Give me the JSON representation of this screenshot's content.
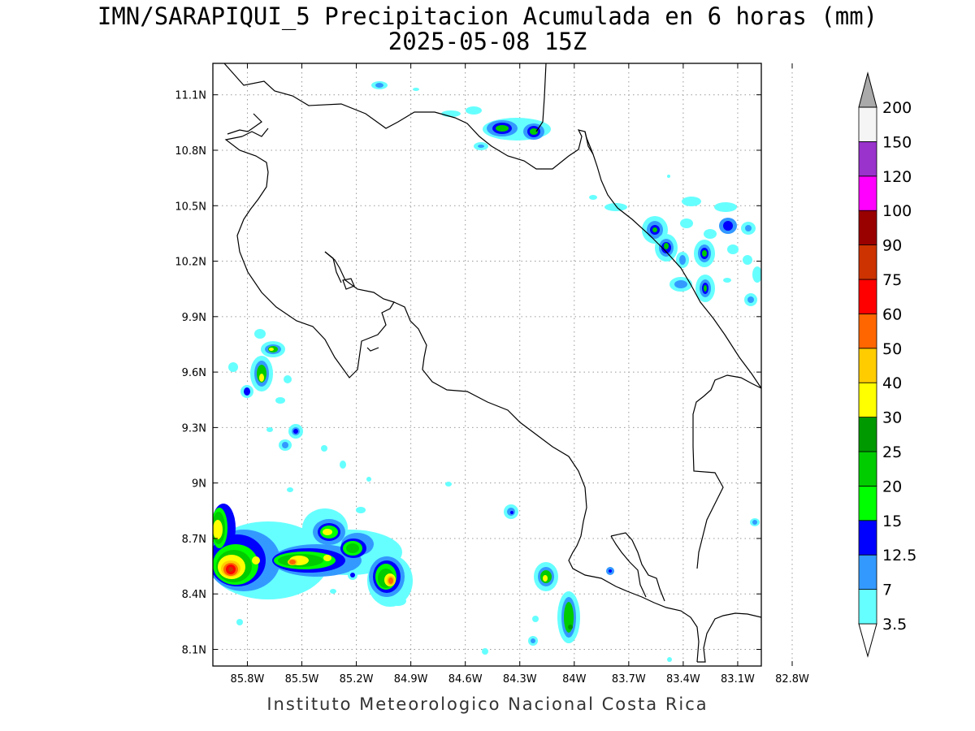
{
  "title_line1": "IMN/SARAPIQUI_5 Precipitacion Acumulada en 6 horas (mm)",
  "title_line2": "2025-05-08 15Z",
  "footer": "Instituto Meteorologico Nacional Costa Rica",
  "map": {
    "lon_range": [
      -85.99,
      -82.97
    ],
    "lat_range": [
      8.01,
      11.27
    ],
    "lon_ticks": [
      "85.8W",
      "85.5W",
      "85.2W",
      "84.9W",
      "84.6W",
      "84.3W",
      "84W",
      "83.7W",
      "83.4W",
      "83.1W",
      "82.8W"
    ],
    "lat_ticks": [
      "8.1N",
      "8.4N",
      "8.7N",
      "9N",
      "9.3N",
      "9.6N",
      "9.9N",
      "10.2N",
      "10.5N",
      "10.8N",
      "11.1N"
    ],
    "grid": "dotted"
  },
  "colorbar": {
    "unit": "mm",
    "labels": [
      "3.5",
      "7",
      "12.5",
      "15",
      "20",
      "25",
      "30",
      "40",
      "50",
      "60",
      "75",
      "90",
      "100",
      "120",
      "150",
      "200"
    ],
    "colors": [
      "#66ffff",
      "#3399ff",
      "#0000ff",
      "#00ff00",
      "#00cc00",
      "#009900",
      "#ffff00",
      "#ffcc00",
      "#ff6600",
      "#ff0000",
      "#cc3300",
      "#990000",
      "#ff00ff",
      "#9933cc",
      "#f5f5f5",
      "#aaaaaa"
    ]
  }
}
